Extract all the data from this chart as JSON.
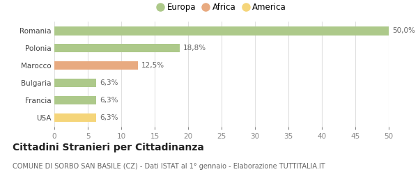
{
  "categories": [
    "Romania",
    "Polonia",
    "Marocco",
    "Bulgaria",
    "Francia",
    "USA"
  ],
  "values": [
    50.0,
    18.8,
    12.5,
    6.3,
    6.3,
    6.3
  ],
  "colors": [
    "#adc98a",
    "#adc98a",
    "#e8aa80",
    "#adc98a",
    "#adc98a",
    "#f5d57a"
  ],
  "labels": [
    "50,0%",
    "18,8%",
    "12,5%",
    "6,3%",
    "6,3%",
    "6,3%"
  ],
  "legend": [
    {
      "label": "Europa",
      "color": "#adc98a"
    },
    {
      "label": "Africa",
      "color": "#e8aa80"
    },
    {
      "label": "America",
      "color": "#f5d57a"
    }
  ],
  "xlim": [
    0,
    50
  ],
  "xticks": [
    0,
    5,
    10,
    15,
    20,
    25,
    30,
    35,
    40,
    45,
    50
  ],
  "title": "Cittadini Stranieri per Cittadinanza",
  "subtitle": "COMUNE DI SORBO SAN BASILE (CZ) - Dati ISTAT al 1° gennaio - Elaborazione TUTTITALIA.IT",
  "background_color": "#ffffff",
  "grid_color": "#e0e0e0",
  "bar_height": 0.5,
  "label_fontsize": 7.5,
  "tick_fontsize": 7.5,
  "title_fontsize": 10,
  "subtitle_fontsize": 7,
  "legend_fontsize": 8.5
}
